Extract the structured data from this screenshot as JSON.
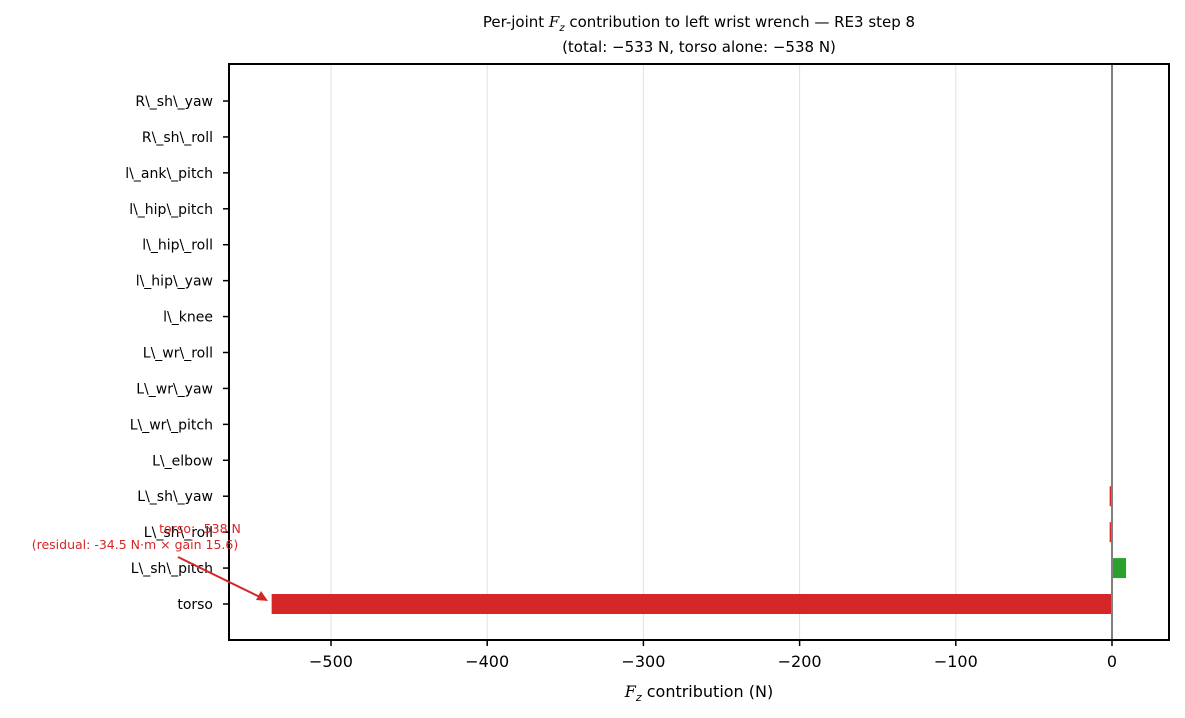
{
  "chart_data": {
    "type": "bar",
    "orientation": "horizontal",
    "title": "Per-joint F_z contribution to left wrist wrench — RE3 step 8",
    "subtitle": "(total: −533 N, torso alone: −538 N)",
    "title_line1_prefix": "Per-joint ",
    "title_line1_symbol": "F",
    "title_line1_sub": "z",
    "title_line1_suffix": " contribution to left wrist wrench — RE3 step 8",
    "xlabel": "F_z contribution (N)",
    "xlabel_symbol": "F",
    "xlabel_sub": "z",
    "xlabel_suffix": " contribution (N)",
    "ylabel": "",
    "xlim": [
      -565,
      37
    ],
    "xticks": [
      -500,
      -400,
      -300,
      -200,
      -100,
      0
    ],
    "xtick_labels": [
      "−500",
      "−400",
      "−300",
      "−200",
      "−100",
      "0"
    ],
    "grid": "x",
    "categories": [
      "torso",
      "L\\_sh\\_pitch",
      "L\\_sh\\_roll",
      "L\\_sh\\_yaw",
      "L\\_elbow",
      "L\\_wr\\_pitch",
      "L\\_wr\\_yaw",
      "L\\_wr\\_roll",
      "l\\_knee",
      "l\\_hip\\_yaw",
      "l\\_hip\\_roll",
      "l\\_hip\\_pitch",
      "l\\_ank\\_pitch",
      "R\\_sh\\_roll",
      "R\\_sh\\_yaw"
    ],
    "values": [
      -538,
      9,
      -1.5,
      -1.5,
      0,
      0,
      0,
      0,
      0,
      0,
      0,
      0,
      0,
      0,
      0
    ],
    "colors": {
      "negative": "#d62728",
      "positive": "#2ca02c",
      "zero_line": "#808080",
      "grid": "#e0e0e0"
    },
    "annotation": {
      "line1": "torso: -538 N",
      "line2": "(residual: -34.5 N·m × gain 15.6)",
      "target_category": "torso",
      "target_value": -538,
      "color": "#d62728"
    }
  }
}
